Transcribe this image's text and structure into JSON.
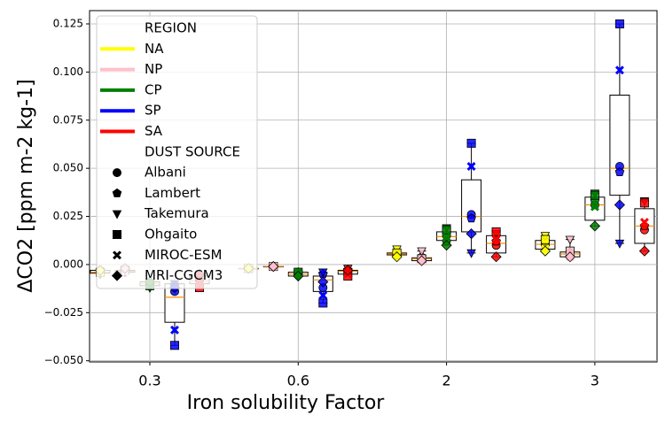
{
  "chart_data": {
    "type": "box",
    "xlabel": "Iron solubility Factor",
    "ylabel": "ΔCO2 [ppm m-2 kg-1]",
    "categories": [
      "0.3",
      "0.6",
      "2",
      "3"
    ],
    "ylim": [
      -0.0506,
      0.1319
    ],
    "yticks": [
      {
        "value": -0.05,
        "label": "−0.050"
      },
      {
        "value": -0.025,
        "label": "−0.025"
      },
      {
        "value": 0,
        "label": "0.000"
      },
      {
        "value": 0.025,
        "label": "0.025"
      },
      {
        "value": 0.05,
        "label": "0.050"
      },
      {
        "value": 0.075,
        "label": "0.075"
      },
      {
        "value": 0.1,
        "label": "0.100"
      },
      {
        "value": 0.125,
        "label": "0.125"
      }
    ],
    "grid": true,
    "legend_position": "upper left",
    "legend_region_title": "REGION",
    "legend_source_title": "DUST SOURCE",
    "sources": [
      {
        "name": "Albani",
        "marker": "circle"
      },
      {
        "name": "Lambert",
        "marker": "pentagon"
      },
      {
        "name": "Takemura",
        "marker": "triangle-down"
      },
      {
        "name": "Ohgaito",
        "marker": "square"
      },
      {
        "name": "MIROC-ESM",
        "marker": "x"
      },
      {
        "name": "MRI-CGCM3",
        "marker": "diamond"
      }
    ],
    "series": [
      {
        "name": "NA",
        "color": "#ffff00",
        "values": [
          [
            -0.004,
            -0.003,
            -0.005,
            -0.004,
            -0.004,
            -0.003
          ],
          [
            -0.002,
            -0.002,
            -0.002,
            -0.002,
            -0.002,
            -0.002
          ],
          [
            0.005,
            0.006,
            0.008,
            0.006,
            0.005,
            0.004
          ],
          [
            0.01,
            0.012,
            0.015,
            0.013,
            0.008,
            0.007
          ]
        ],
        "boxes": [
          [
            -0.005,
            -0.0045,
            -0.004,
            -0.003,
            -0.003
          ],
          [
            -0.002,
            -0.002,
            -0.002,
            -0.002,
            -0.002
          ],
          [
            0.004,
            0.005,
            0.0055,
            0.006,
            0.008
          ],
          [
            0.007,
            0.008,
            0.0105,
            0.0125,
            0.015
          ]
        ]
      },
      {
        "name": "NP",
        "color": "#ffc0cb",
        "values": [
          [
            -0.004,
            -0.003,
            -0.004,
            -0.003,
            -0.004,
            -0.002
          ],
          [
            -0.001,
            -0.001,
            -0.001,
            -0.001,
            -0.001,
            -0.001
          ],
          [
            0.003,
            0.004,
            0.007,
            0.003,
            0.002,
            0.002
          ],
          [
            0.005,
            0.006,
            0.013,
            0.007,
            0.004,
            0.004
          ]
        ],
        "boxes": [
          [
            -0.004,
            -0.004,
            -0.0035,
            -0.003,
            -0.002
          ],
          [
            -0.001,
            -0.001,
            -0.001,
            -0.001,
            -0.001
          ],
          [
            0.002,
            0.002,
            0.003,
            0.0035,
            0.007
          ],
          [
            0.004,
            0.004,
            0.0055,
            0.0065,
            0.013
          ]
        ]
      },
      {
        "name": "CP",
        "color": "#008000",
        "values": [
          [
            -0.01,
            -0.009,
            -0.012,
            -0.011,
            -0.01,
            -0.009
          ],
          [
            -0.005,
            -0.004,
            -0.006,
            -0.004,
            -0.005,
            -0.006
          ],
          [
            0.015,
            0.012,
            0.019,
            0.018,
            0.014,
            0.01
          ],
          [
            0.031,
            0.033,
            0.037,
            0.036,
            0.03,
            0.02
          ]
        ],
        "boxes": [
          [
            -0.012,
            -0.011,
            -0.01,
            -0.009,
            -0.009
          ],
          [
            -0.006,
            -0.006,
            -0.005,
            -0.004,
            -0.004
          ],
          [
            0.01,
            0.0125,
            0.0145,
            0.017,
            0.019
          ],
          [
            0.02,
            0.023,
            0.031,
            0.035,
            0.037
          ]
        ]
      },
      {
        "name": "SP",
        "color": "#0000ff",
        "values": [
          [
            -0.014,
            -0.011,
            -0.01,
            -0.042,
            -0.034,
            -0.012
          ],
          [
            -0.012,
            -0.005,
            -0.004,
            -0.02,
            -0.016,
            -0.009
          ],
          [
            0.026,
            0.024,
            0.006,
            0.063,
            0.051,
            0.016
          ],
          [
            0.051,
            0.048,
            0.011,
            0.125,
            0.101,
            0.031
          ]
        ],
        "boxes": [
          [
            -0.042,
            -0.03,
            -0.017,
            -0.01,
            -0.01
          ],
          [
            -0.02,
            -0.014,
            -0.008,
            -0.006,
            -0.004
          ],
          [
            0.006,
            0.017,
            0.025,
            0.044,
            0.063
          ],
          [
            0.011,
            0.036,
            0.05,
            0.088,
            0.125
          ]
        ]
      },
      {
        "name": "SA",
        "color": "#ff0000",
        "values": [
          [
            -0.008,
            -0.006,
            -0.01,
            -0.012,
            -0.009,
            -0.005
          ],
          [
            -0.004,
            -0.003,
            -0.002,
            -0.006,
            -0.005,
            -0.003
          ],
          [
            0.01,
            0.012,
            0.016,
            0.017,
            0.013,
            0.004
          ],
          [
            0.018,
            0.02,
            0.033,
            0.032,
            0.022,
            0.007
          ]
        ],
        "boxes": [
          [
            -0.012,
            -0.01,
            -0.0085,
            -0.006,
            -0.005
          ],
          [
            -0.006,
            -0.005,
            -0.0035,
            -0.003,
            -0.002
          ],
          [
            0.004,
            0.006,
            0.011,
            0.015,
            0.017
          ],
          [
            0.007,
            0.011,
            0.02,
            0.029,
            0.033
          ]
        ]
      }
    ]
  }
}
